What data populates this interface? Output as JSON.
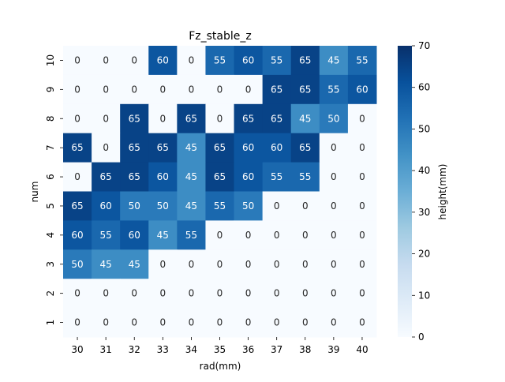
{
  "chart_data": {
    "type": "heatmap",
    "title": "Fz_stable_z",
    "xlabel": "rad(mm)",
    "ylabel": "num",
    "x_categories": [
      "30",
      "31",
      "32",
      "33",
      "34",
      "35",
      "36",
      "37",
      "38",
      "39",
      "40"
    ],
    "y_categories": [
      "10",
      "9",
      "8",
      "7",
      "6",
      "5",
      "4",
      "3",
      "2",
      "1"
    ],
    "values": [
      [
        0,
        0,
        0,
        60,
        0,
        55,
        60,
        55,
        65,
        45,
        55
      ],
      [
        0,
        0,
        0,
        0,
        0,
        0,
        0,
        65,
        65,
        55,
        60
      ],
      [
        0,
        0,
        65,
        0,
        65,
        0,
        65,
        65,
        45,
        50,
        0
      ],
      [
        65,
        0,
        65,
        65,
        45,
        65,
        60,
        60,
        65,
        0,
        0
      ],
      [
        0,
        65,
        65,
        60,
        45,
        65,
        60,
        55,
        55,
        0,
        0
      ],
      [
        65,
        60,
        50,
        50,
        45,
        55,
        50,
        0,
        0,
        0,
        0
      ],
      [
        60,
        55,
        60,
        45,
        55,
        0,
        0,
        0,
        0,
        0,
        0
      ],
      [
        50,
        45,
        45,
        0,
        0,
        0,
        0,
        0,
        0,
        0,
        0
      ],
      [
        0,
        0,
        0,
        0,
        0,
        0,
        0,
        0,
        0,
        0,
        0
      ],
      [
        0,
        0,
        0,
        0,
        0,
        0,
        0,
        0,
        0,
        0,
        0
      ]
    ],
    "colorbar": {
      "label": "height(mm)",
      "vmin": 0,
      "vmax": 70,
      "ticks": [
        "0",
        "10",
        "20",
        "30",
        "40",
        "50",
        "60",
        "70"
      ]
    },
    "colormap": "Blues",
    "colors": [
      "#f7fbff",
      "#deebf7",
      "#c6dbef",
      "#9ecae1",
      "#6baed6",
      "#4292c6",
      "#2171b5",
      "#08519c",
      "#08306b"
    ],
    "annotations": true,
    "grid": false
  }
}
